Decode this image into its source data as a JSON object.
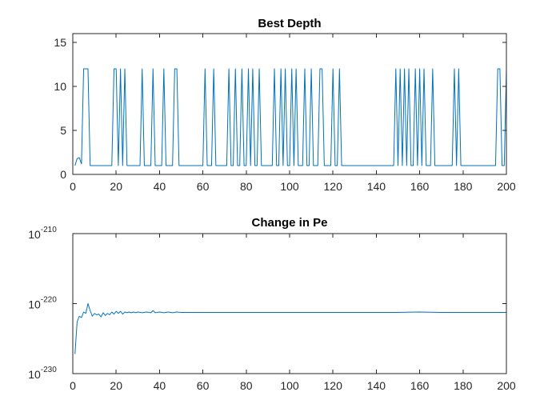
{
  "chart_data": [
    {
      "type": "line",
      "title": "Best Depth",
      "xlim": [
        0,
        200
      ],
      "ylim": [
        0,
        16
      ],
      "xticks": [
        0,
        20,
        40,
        60,
        80,
        100,
        120,
        140,
        160,
        180,
        200
      ],
      "yticks": [
        0,
        5,
        10,
        15
      ],
      "x_ticklabels": [
        "0",
        "20",
        "40",
        "60",
        "80",
        "100",
        "120",
        "140",
        "160",
        "180",
        "200"
      ],
      "y_ticklabels": [
        "0",
        "5",
        "10",
        "15"
      ],
      "color": "#0072BD",
      "series": [
        {
          "spikes": [
            [
              5,
              7
            ],
            [
              19,
              20
            ],
            [
              22,
              22
            ],
            [
              24,
              24
            ],
            [
              32,
              32
            ],
            [
              37,
              37
            ],
            [
              42,
              42
            ],
            [
              47,
              48
            ],
            [
              61,
              61
            ],
            [
              65,
              65
            ],
            [
              72,
              72
            ],
            [
              75,
              75
            ],
            [
              78,
              78
            ],
            [
              81,
              81
            ],
            [
              83,
              83
            ],
            [
              86,
              86
            ],
            [
              93,
              93
            ],
            [
              96,
              96
            ],
            [
              98,
              98
            ],
            [
              101,
              101
            ],
            [
              103,
              103
            ],
            [
              107,
              107
            ],
            [
              110,
              110
            ],
            [
              114,
              115
            ],
            [
              120,
              120
            ],
            [
              123,
              123
            ],
            [
              149,
              149
            ],
            [
              151,
              151
            ],
            [
              153,
              153
            ],
            [
              155,
              155
            ],
            [
              158,
              158
            ],
            [
              160,
              160
            ],
            [
              162,
              162
            ],
            [
              166,
              166
            ],
            [
              176,
              176
            ],
            [
              178,
              178
            ],
            [
              196,
              197
            ],
            [
              200,
              200
            ]
          ],
          "spike_value": 12,
          "base_value": 1,
          "start": [
            [
              1,
              1
            ],
            [
              2,
              1.8
            ],
            [
              3,
              1.9
            ],
            [
              4,
              1.2
            ]
          ]
        }
      ]
    },
    {
      "type": "line",
      "title": "Change in Pe",
      "yscale": "log",
      "xlim": [
        0,
        200
      ],
      "ylim_exp": [
        -230,
        -210
      ],
      "xticks": [
        0,
        20,
        40,
        60,
        80,
        100,
        120,
        140,
        160,
        180,
        200
      ],
      "x_ticklabels": [
        "0",
        "20",
        "40",
        "60",
        "80",
        "100",
        "120",
        "140",
        "160",
        "180",
        "200"
      ],
      "yticks_exp": [
        -230,
        -220,
        -210
      ],
      "y_ticklabels": [
        {
          "base": "10",
          "exp": "-230"
        },
        {
          "base": "10",
          "exp": "-220"
        },
        {
          "base": "10",
          "exp": "-210"
        }
      ],
      "color": "#0072BD",
      "series": [
        {
          "x": [
            1,
            2,
            3,
            4,
            5,
            6,
            7,
            8,
            9,
            10,
            11,
            12,
            13,
            14,
            15,
            16,
            17,
            18,
            19,
            20,
            21,
            22,
            23,
            24,
            25,
            26,
            27,
            28,
            29,
            30,
            32,
            34,
            36,
            37,
            38,
            40,
            42,
            44,
            46,
            48,
            50,
            60,
            70,
            80,
            90,
            100,
            110,
            120,
            130,
            140,
            150,
            160,
            170,
            180,
            190,
            200
          ],
          "log10_y": [
            -227.2,
            -222.6,
            -221.8,
            -222.0,
            -221.2,
            -221.4,
            -220.0,
            -221.0,
            -221.8,
            -221.4,
            -221.6,
            -221.5,
            -221.9,
            -221.3,
            -221.7,
            -221.4,
            -221.6,
            -221.2,
            -221.5,
            -221.1,
            -221.4,
            -221.1,
            -221.5,
            -221.2,
            -221.3,
            -221.2,
            -221.3,
            -221.2,
            -221.3,
            -221.2,
            -221.3,
            -221.2,
            -221.3,
            -221.0,
            -221.3,
            -221.2,
            -221.3,
            -221.2,
            -221.3,
            -221.2,
            -221.25,
            -221.25,
            -221.25,
            -221.25,
            -221.25,
            -221.25,
            -221.25,
            -221.25,
            -221.25,
            -221.25,
            -221.25,
            -221.2,
            -221.25,
            -221.25,
            -221.25,
            -221.25
          ]
        }
      ]
    }
  ]
}
